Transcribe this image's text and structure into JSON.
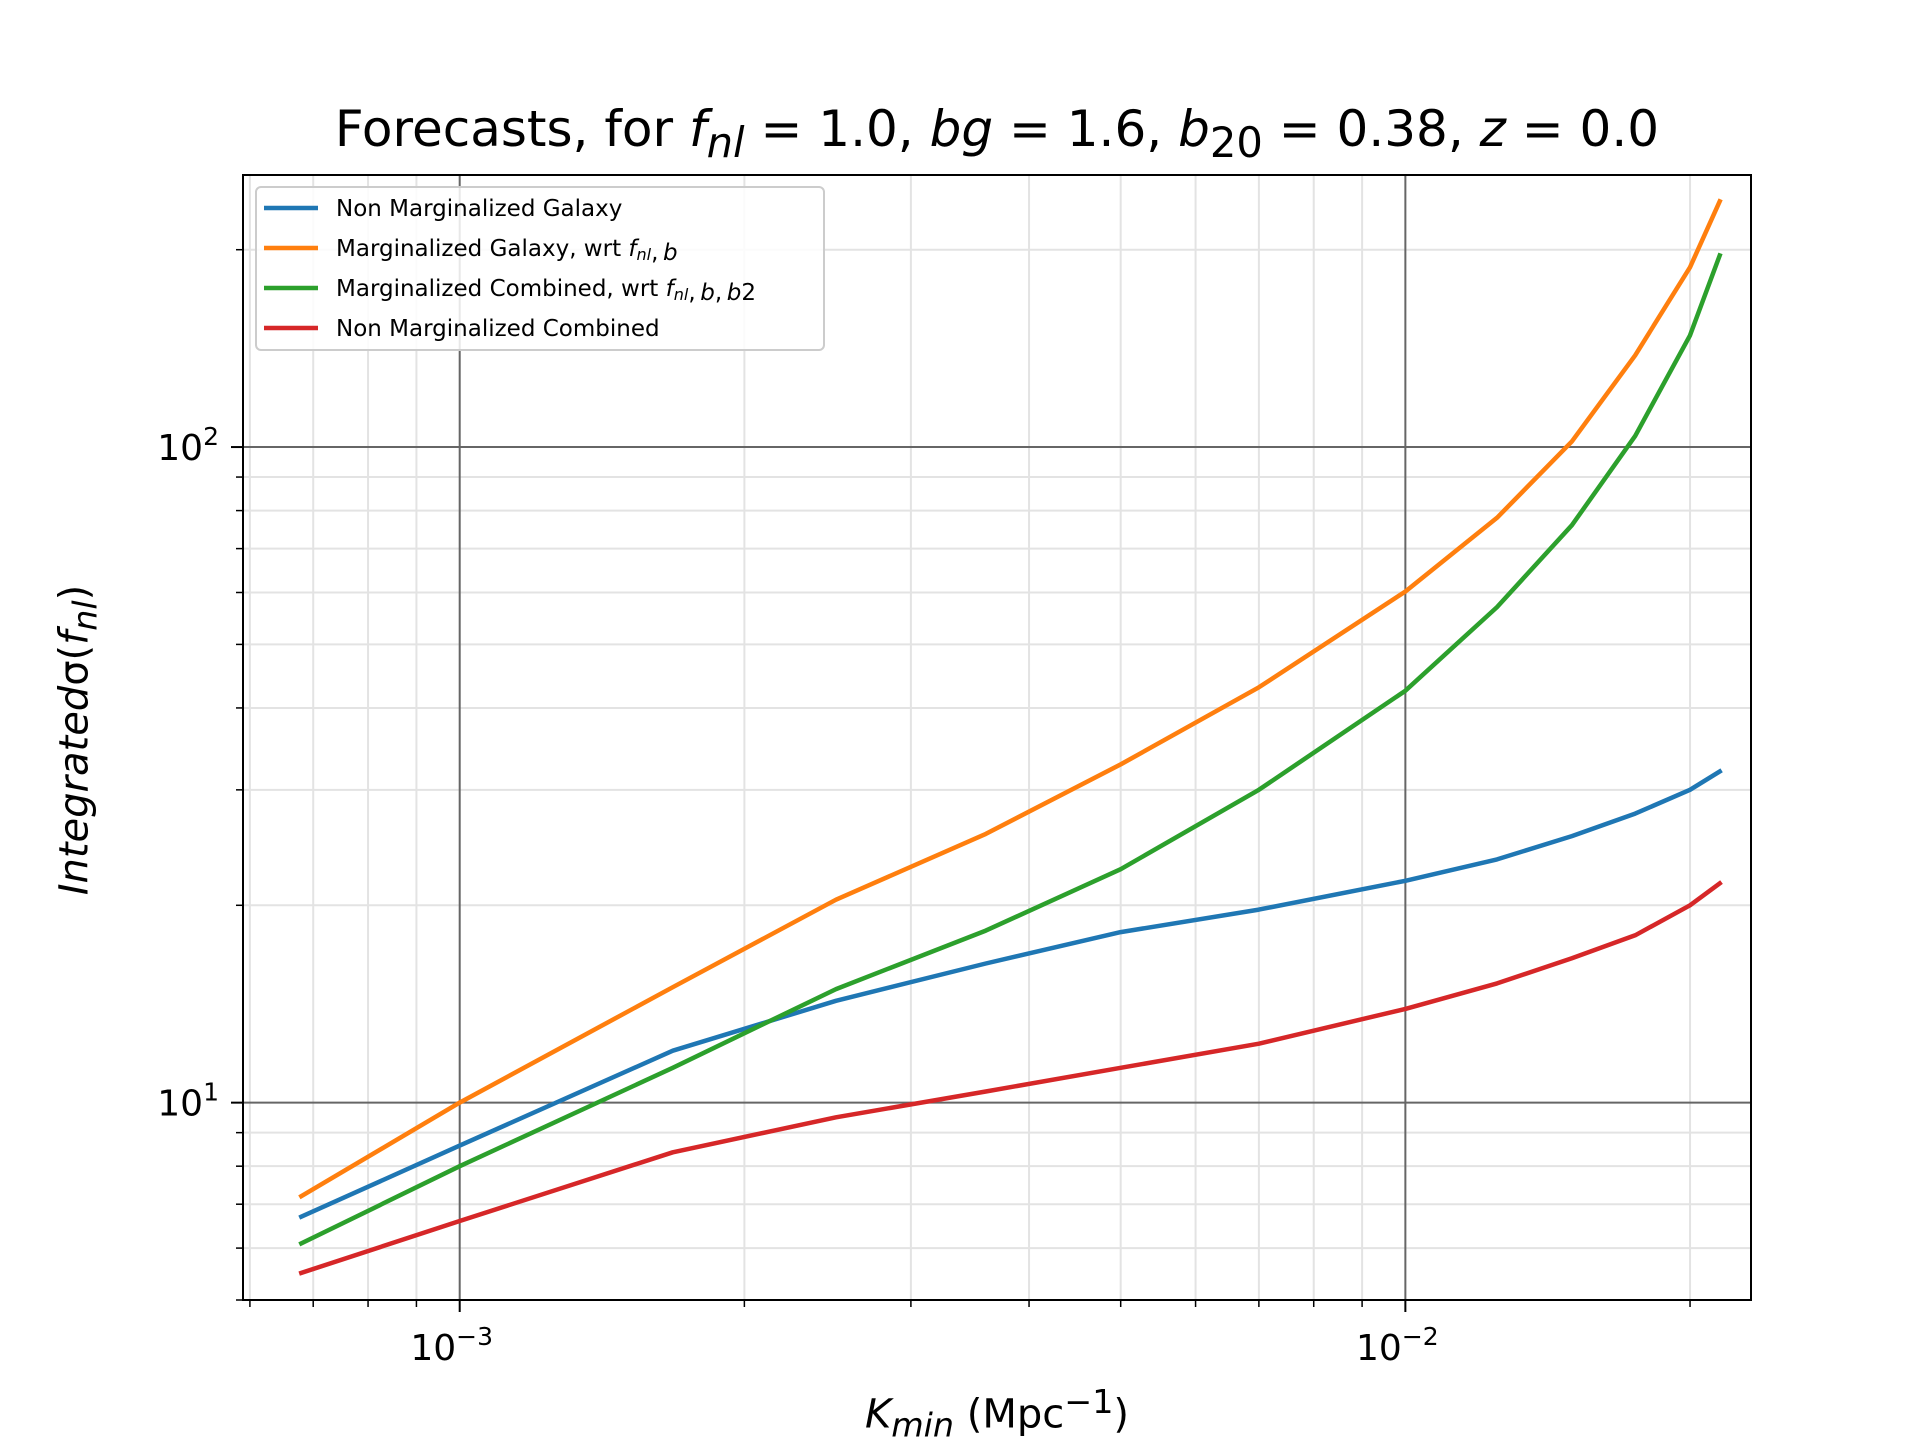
{
  "chart_data": {
    "type": "line",
    "title": "Forecasts, for f_nl = 1.0, bg = 1.6, b_20 = 0.38, z = 0.0",
    "xlabel": "K_min (Mpc^-1)",
    "ylabel": "Integrated σ(f_nl)",
    "xscale": "log",
    "yscale": "log",
    "xlim": [
      0.00059,
      0.0232
    ],
    "ylim": [
      5.0,
      260
    ],
    "x_ticks": [
      {
        "value": 0.001,
        "base": "10",
        "exp": "−3"
      },
      {
        "value": 0.01,
        "base": "10",
        "exp": "−2"
      }
    ],
    "y_ticks": [
      {
        "value": 10,
        "base": "10",
        "exp": "1"
      },
      {
        "value": 100,
        "base": "10",
        "exp": "2"
      }
    ],
    "grid": true,
    "legend_position": "upper-left",
    "x": [
      0.00068,
      0.001,
      0.00168,
      0.0025,
      0.0036,
      0.005,
      0.007,
      0.01,
      0.0125,
      0.015,
      0.0175,
      0.02,
      0.0215
    ],
    "series": [
      {
        "name": "Non Marginalized Galaxy",
        "color": "#1f77b4",
        "values": [
          6.7,
          8.6,
          12.0,
          14.3,
          16.3,
          18.2,
          19.7,
          21.8,
          23.5,
          25.5,
          27.6,
          30.0,
          32.0
        ]
      },
      {
        "name": "Marginalized Galaxy, wrt f_nl, b",
        "color": "#ff7f0e",
        "values": [
          7.2,
          10.0,
          15.0,
          20.4,
          25.7,
          32.8,
          43.0,
          60.2,
          78.0,
          102.0,
          138.0,
          188.0,
          237.0
        ]
      },
      {
        "name": "Marginalized Combined, wrt f_nl, b, b2",
        "color": "#2ca02c",
        "values": [
          6.1,
          8.0,
          11.3,
          14.9,
          18.3,
          22.7,
          30.0,
          42.5,
          57.0,
          76.0,
          104.0,
          148.0,
          196.0
        ]
      },
      {
        "name": "Non Marginalized Combined",
        "color": "#d62728",
        "values": [
          5.5,
          6.6,
          8.4,
          9.5,
          10.4,
          11.3,
          12.3,
          13.9,
          15.2,
          16.6,
          18.0,
          20.0,
          21.6
        ]
      }
    ]
  }
}
